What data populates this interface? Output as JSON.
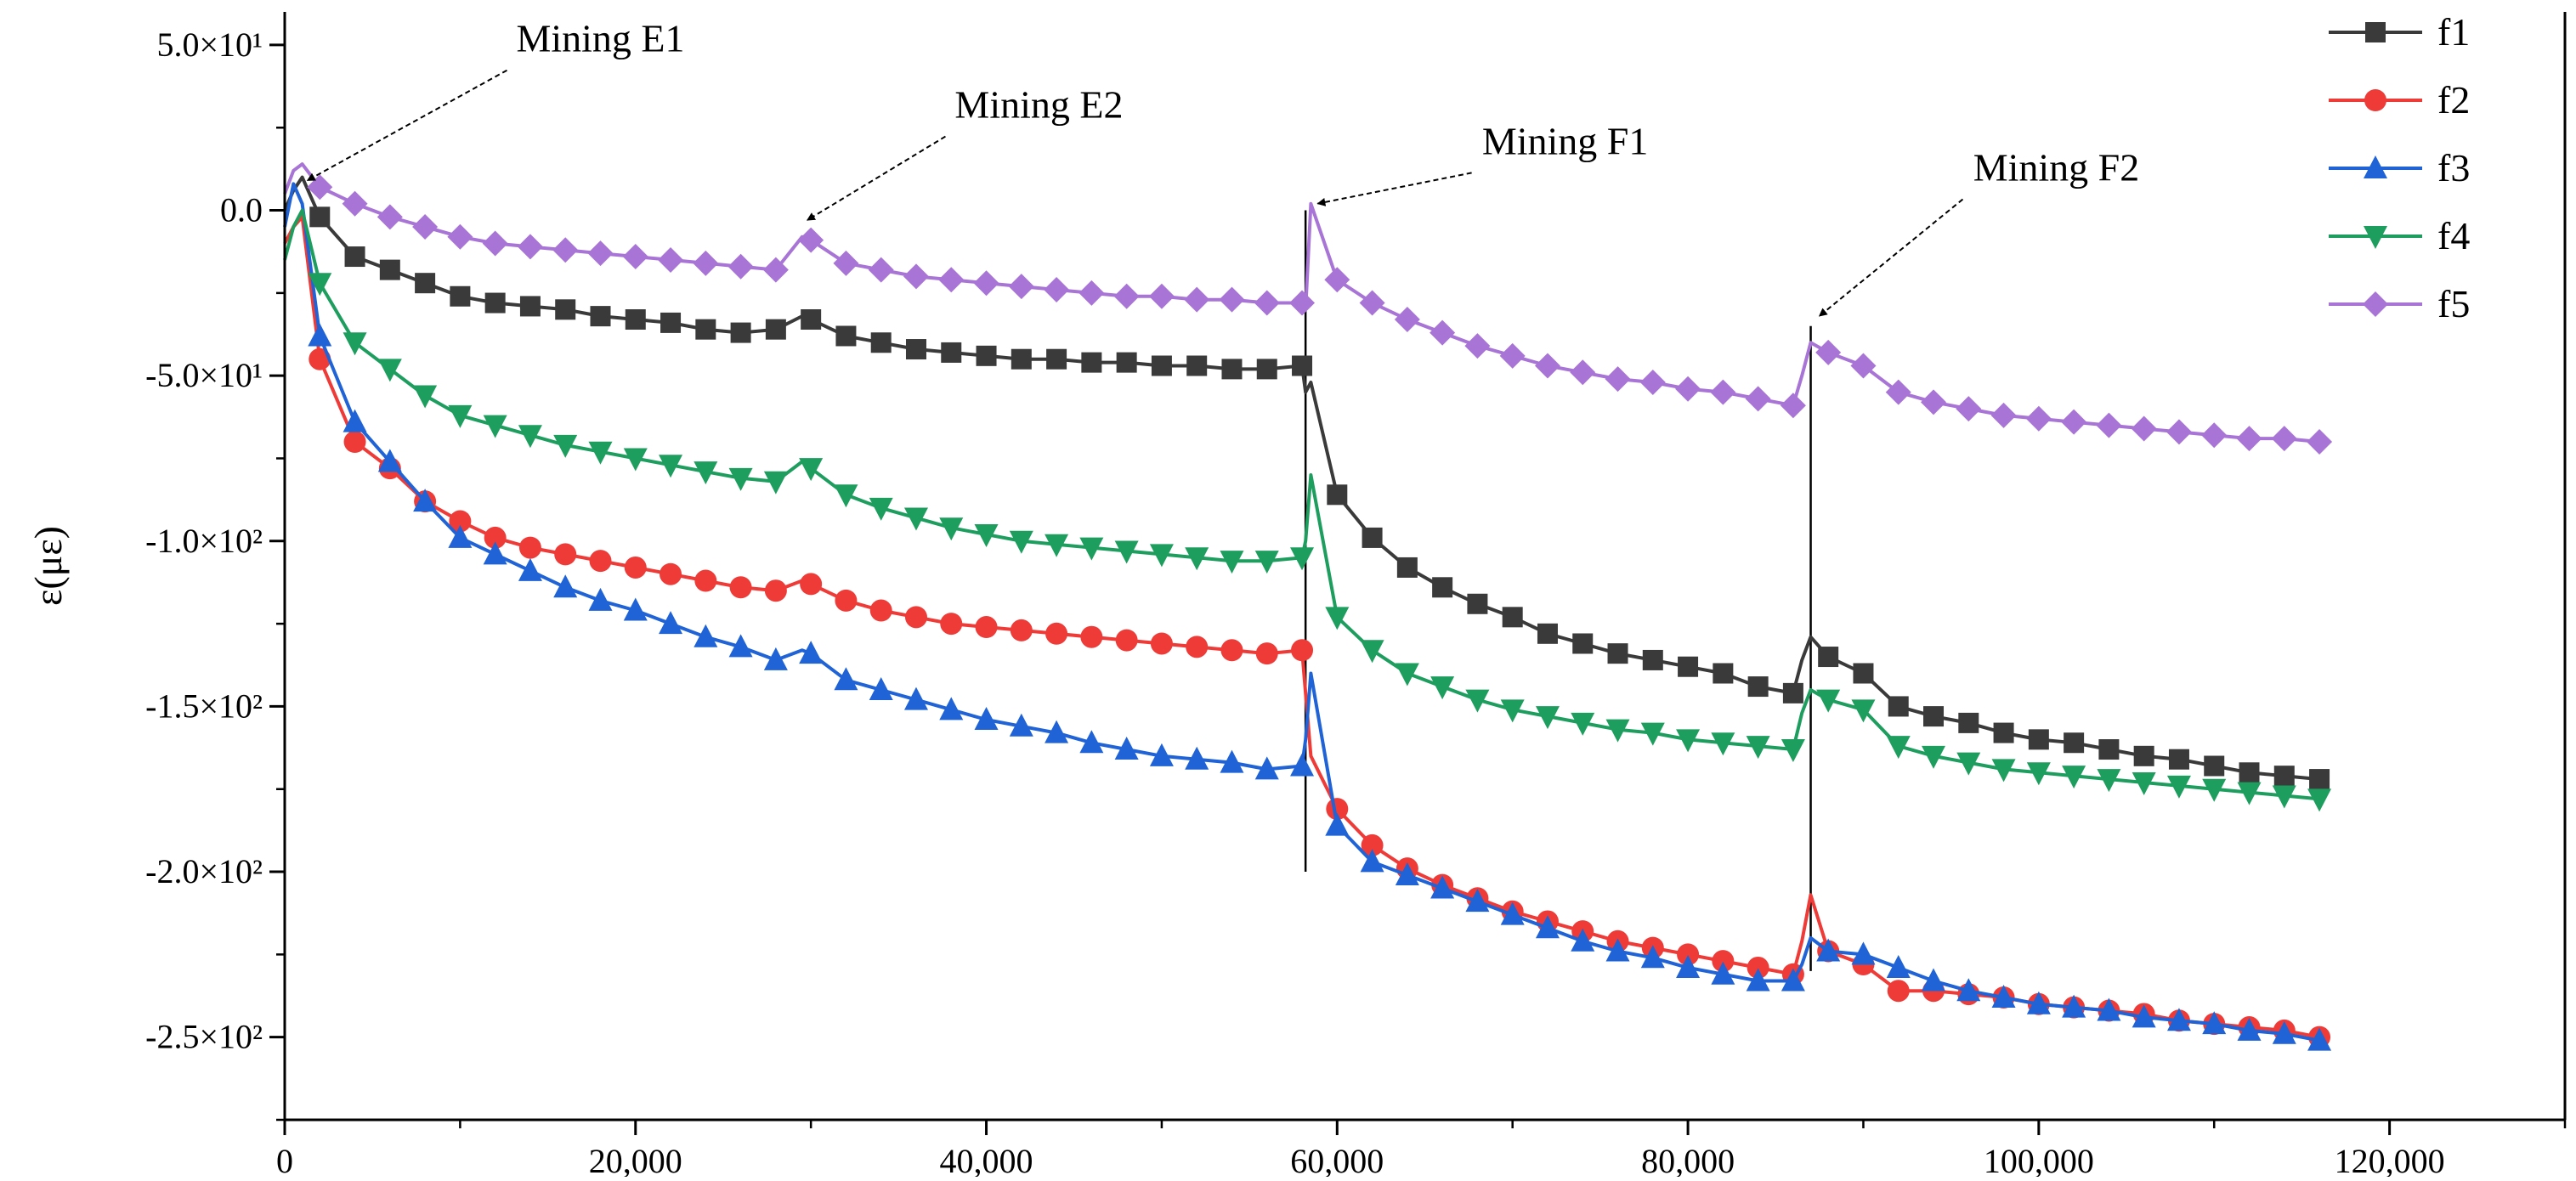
{
  "chart_data": {
    "type": "line",
    "title": "",
    "xlabel": "",
    "ylabel": "ε(με)",
    "xlim": [
      0,
      130000
    ],
    "ylim": [
      -275,
      60
    ],
    "x_ticks": [
      0,
      20000,
      40000,
      60000,
      80000,
      100000,
      120000
    ],
    "x_tick_labels": [
      "0",
      "20,000",
      "40,000",
      "60,000",
      "80,000",
      "100,000",
      "120,000"
    ],
    "y_ticks": [
      50,
      0,
      -50,
      -100,
      -150,
      -200,
      -250
    ],
    "y_tick_labels": [
      "5.0×10¹",
      "0.0",
      "-5.0×10¹",
      "-1.0×10²",
      "-1.5×10²",
      "-2.0×10²",
      "-2.5×10²"
    ],
    "legend_position": "top-right",
    "grid": false,
    "event_lines": [
      {
        "x": 58200,
        "from": -200,
        "to": 0
      },
      {
        "x": 87000,
        "from": -230,
        "to": -35
      }
    ],
    "annotations": [
      {
        "text": "Mining E1",
        "point": [
          1000,
          8
        ],
        "text_at": [
          18000,
          48
        ]
      },
      {
        "text": "Mining E2",
        "point": [
          29500,
          -4
        ],
        "text_at": [
          43000,
          28
        ]
      },
      {
        "text": "Mining F1",
        "point": [
          58600,
          1
        ],
        "text_at": [
          73000,
          17
        ]
      },
      {
        "text": "Mining F2",
        "point": [
          87200,
          -33
        ],
        "text_at": [
          101000,
          9
        ]
      }
    ],
    "series": [
      {
        "name": "f1",
        "color": "#3a3a3a",
        "marker": "square",
        "x": [
          0,
          500,
          1000,
          2000,
          4000,
          6000,
          8000,
          10000,
          12000,
          14000,
          16000,
          18000,
          20000,
          22000,
          24000,
          26000,
          28000,
          29500,
          30000,
          32000,
          34000,
          36000,
          38000,
          40000,
          42000,
          44000,
          46000,
          48000,
          50000,
          52000,
          54000,
          56000,
          58000,
          58200,
          58500,
          60000,
          62000,
          64000,
          66000,
          68000,
          70000,
          72000,
          74000,
          76000,
          78000,
          80000,
          82000,
          84000,
          86000,
          86500,
          87000,
          88000,
          90000,
          92000,
          94000,
          96000,
          98000,
          100000,
          102000,
          104000,
          106000,
          108000,
          110000,
          112000,
          114000,
          116000
        ],
        "y": [
          0,
          6,
          10,
          -2,
          -14,
          -18,
          -22,
          -26,
          -28,
          -29,
          -30,
          -32,
          -33,
          -34,
          -36,
          -37,
          -36,
          -32,
          -33,
          -38,
          -40,
          -42,
          -43,
          -44,
          -45,
          -45,
          -46,
          -46,
          -47,
          -47,
          -48,
          -48,
          -47,
          -55,
          -52,
          -86,
          -99,
          -108,
          -114,
          -119,
          -123,
          -128,
          -131,
          -134,
          -136,
          -138,
          -140,
          -144,
          -146,
          -136,
          -129,
          -135,
          -140,
          -150,
          -153,
          -155,
          -158,
          -160,
          -161,
          -163,
          -165,
          -166,
          -168,
          -170,
          -171,
          -172
        ]
      },
      {
        "name": "f2",
        "color": "#ee3b37",
        "marker": "circle",
        "x": [
          0,
          500,
          1000,
          2000,
          4000,
          6000,
          8000,
          10000,
          12000,
          14000,
          16000,
          18000,
          20000,
          22000,
          24000,
          26000,
          28000,
          29500,
          30000,
          32000,
          34000,
          36000,
          38000,
          40000,
          42000,
          44000,
          46000,
          48000,
          50000,
          52000,
          54000,
          56000,
          58000,
          58200,
          58500,
          60000,
          62000,
          64000,
          66000,
          68000,
          70000,
          72000,
          74000,
          76000,
          78000,
          80000,
          82000,
          84000,
          86000,
          86500,
          87000,
          88000,
          90000,
          92000,
          94000,
          96000,
          98000,
          100000,
          102000,
          104000,
          106000,
          108000,
          110000,
          112000,
          114000,
          116000
        ],
        "y": [
          -10,
          -5,
          -2,
          -45,
          -70,
          -78,
          -88,
          -94,
          -99,
          -102,
          -104,
          -106,
          -108,
          -110,
          -112,
          -114,
          -115,
          -112,
          -113,
          -118,
          -121,
          -123,
          -125,
          -126,
          -127,
          -128,
          -129,
          -130,
          -131,
          -132,
          -133,
          -134,
          -133,
          -146,
          -165,
          -181,
          -192,
          -199,
          -204,
          -208,
          -212,
          -215,
          -218,
          -221,
          -223,
          -225,
          -227,
          -229,
          -231,
          -221,
          -207,
          -224,
          -228,
          -236,
          -236,
          -237,
          -238,
          -240,
          -241,
          -242,
          -243,
          -245,
          -246,
          -247,
          -248,
          -250
        ]
      },
      {
        "name": "f3",
        "color": "#1f63d6",
        "marker": "triangle-up",
        "x": [
          0,
          500,
          1000,
          2000,
          4000,
          6000,
          8000,
          10000,
          12000,
          14000,
          16000,
          18000,
          20000,
          22000,
          24000,
          26000,
          28000,
          29500,
          30000,
          32000,
          34000,
          36000,
          38000,
          40000,
          42000,
          44000,
          46000,
          48000,
          50000,
          52000,
          54000,
          56000,
          58000,
          58200,
          58500,
          60000,
          62000,
          64000,
          66000,
          68000,
          70000,
          72000,
          74000,
          76000,
          78000,
          80000,
          82000,
          84000,
          86000,
          86500,
          87000,
          88000,
          90000,
          92000,
          94000,
          96000,
          98000,
          100000,
          102000,
          104000,
          106000,
          108000,
          110000,
          112000,
          114000,
          116000
        ],
        "y": [
          -5,
          8,
          2,
          -38,
          -64,
          -76,
          -88,
          -99,
          -104,
          -109,
          -114,
          -118,
          -121,
          -125,
          -129,
          -132,
          -136,
          -133,
          -134,
          -142,
          -145,
          -148,
          -151,
          -154,
          -156,
          -158,
          -161,
          -163,
          -165,
          -166,
          -167,
          -169,
          -168,
          -160,
          -140,
          -186,
          -197,
          -201,
          -205,
          -209,
          -213,
          -217,
          -221,
          -224,
          -226,
          -229,
          -231,
          -233,
          -233,
          -228,
          -220,
          -224,
          -225,
          -229,
          -233,
          -236,
          -238,
          -240,
          -241,
          -242,
          -244,
          -245,
          -246,
          -248,
          -249,
          -251
        ]
      },
      {
        "name": "f4",
        "color": "#1e9e5e",
        "marker": "triangle-down",
        "x": [
          0,
          500,
          1000,
          2000,
          4000,
          6000,
          8000,
          10000,
          12000,
          14000,
          16000,
          18000,
          20000,
          22000,
          24000,
          26000,
          28000,
          29500,
          30000,
          32000,
          34000,
          36000,
          38000,
          40000,
          42000,
          44000,
          46000,
          48000,
          50000,
          52000,
          54000,
          56000,
          58000,
          58200,
          58500,
          60000,
          62000,
          64000,
          66000,
          68000,
          70000,
          72000,
          74000,
          76000,
          78000,
          80000,
          82000,
          84000,
          86000,
          86500,
          87000,
          88000,
          90000,
          92000,
          94000,
          96000,
          98000,
          100000,
          102000,
          104000,
          106000,
          108000,
          110000,
          112000,
          114000,
          116000
        ],
        "y": [
          -15,
          -5,
          0,
          -22,
          -40,
          -48,
          -56,
          -62,
          -65,
          -68,
          -71,
          -73,
          -75,
          -77,
          -79,
          -81,
          -82,
          -76,
          -78,
          -86,
          -90,
          -93,
          -96,
          -98,
          -100,
          -101,
          -102,
          -103,
          -104,
          -105,
          -106,
          -106,
          -105,
          -100,
          -80,
          -123,
          -133,
          -140,
          -144,
          -148,
          -151,
          -153,
          -155,
          -157,
          -158,
          -160,
          -161,
          -162,
          -163,
          -152,
          -145,
          -148,
          -151,
          -162,
          -165,
          -167,
          -169,
          -170,
          -171,
          -172,
          -173,
          -174,
          -175,
          -176,
          -177,
          -178
        ]
      },
      {
        "name": "f5",
        "color": "#a875d6",
        "marker": "diamond",
        "x": [
          0,
          500,
          1000,
          2000,
          4000,
          6000,
          8000,
          10000,
          12000,
          14000,
          16000,
          18000,
          20000,
          22000,
          24000,
          26000,
          28000,
          29500,
          30000,
          32000,
          34000,
          36000,
          38000,
          40000,
          42000,
          44000,
          46000,
          48000,
          50000,
          52000,
          54000,
          56000,
          58000,
          58200,
          58500,
          60000,
          62000,
          64000,
          66000,
          68000,
          70000,
          72000,
          74000,
          76000,
          78000,
          80000,
          82000,
          84000,
          86000,
          86500,
          87000,
          88000,
          90000,
          92000,
          94000,
          96000,
          98000,
          100000,
          102000,
          104000,
          106000,
          108000,
          110000,
          112000,
          114000,
          116000
        ],
        "y": [
          5,
          12,
          14,
          7,
          2,
          -2,
          -5,
          -8,
          -10,
          -11,
          -12,
          -13,
          -14,
          -15,
          -16,
          -17,
          -18,
          -8,
          -9,
          -16,
          -18,
          -20,
          -21,
          -22,
          -23,
          -24,
          -25,
          -26,
          -26,
          -27,
          -27,
          -28,
          -28,
          -30,
          2,
          -21,
          -28,
          -33,
          -37,
          -41,
          -44,
          -47,
          -49,
          -51,
          -52,
          -54,
          -55,
          -57,
          -59,
          -50,
          -40,
          -43,
          -47,
          -55,
          -58,
          -60,
          -62,
          -63,
          -64,
          -65,
          -66,
          -67,
          -68,
          -69,
          -69,
          -70
        ]
      }
    ]
  }
}
